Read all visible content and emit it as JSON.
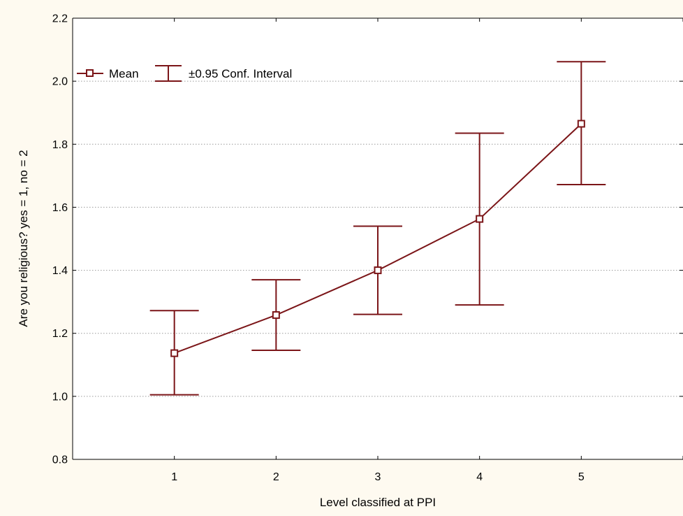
{
  "chart_data": {
    "type": "line",
    "title": "",
    "xlabel": "Level classified at PPI",
    "ylabel": "Are you religious? yes = 1, no = 2",
    "x": [
      1,
      2,
      3,
      4,
      5
    ],
    "x_tick_labels": [
      "1",
      "2",
      "3",
      "4",
      "5"
    ],
    "xlim": [
      0,
      6
    ],
    "ylim": [
      0.8,
      2.2
    ],
    "y_ticks": [
      0.8,
      1.0,
      1.2,
      1.4,
      1.6,
      1.8,
      2.0,
      2.2
    ],
    "y_tick_labels": [
      "0.8",
      "1.0",
      "1.2",
      "1.4",
      "1.6",
      "1.8",
      "2.0",
      "2.2"
    ],
    "grid": "horizontal dotted",
    "legend_position": "top-left",
    "series": [
      {
        "name": "Mean",
        "values": [
          1.137,
          1.258,
          1.4,
          1.563,
          1.865
        ],
        "ci_lower": [
          1.005,
          1.146,
          1.26,
          1.29,
          1.672
        ],
        "ci_upper": [
          1.272,
          1.37,
          1.54,
          1.835,
          2.062
        ]
      }
    ],
    "legend": {
      "mean_label": "Mean",
      "ci_label": "±0.95 Conf. Interval"
    },
    "colors": {
      "series": "#7b1518",
      "plot_background": "#ffffff",
      "page_background": "#fefaf0",
      "grid": "#9a9a9a"
    }
  }
}
